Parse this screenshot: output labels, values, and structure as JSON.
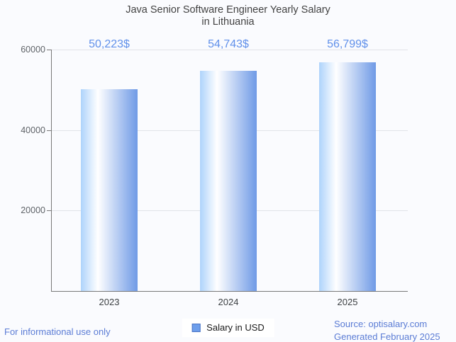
{
  "title": {
    "line1": "Java Senior Software Engineer Yearly Salary",
    "line2": "in Lithuania"
  },
  "chart_data": {
    "type": "bar",
    "title": "Java Senior Software Engineer Yearly Salary in Lithuania",
    "categories": [
      "2023",
      "2024",
      "2025"
    ],
    "values": [
      50223,
      54743,
      56799
    ],
    "value_labels": [
      "50,223$",
      "54,743$",
      "56,799$"
    ],
    "series": [
      {
        "name": "Salary in USD",
        "values": [
          50223,
          54743,
          56799
        ]
      }
    ],
    "xlabel": "",
    "ylabel": "",
    "ylim": [
      0,
      60000
    ],
    "yticks": [
      20000,
      40000,
      60000
    ],
    "ytick_labels": [
      "20000",
      "40000",
      "60000"
    ],
    "grid": true,
    "legend_position": "bottom-center",
    "bar_gradient": [
      "#aed3fb",
      "#ffffff",
      "#6f9ae6"
    ],
    "value_label_color": "#6090ea"
  },
  "legend": {
    "label": "Salary in USD",
    "swatch_fill": "#6d9eeb",
    "swatch_border": "#4a73c4"
  },
  "footer": {
    "left": "For informational use only",
    "source": "Source: optisalary.com",
    "generated": "Generated February 2025"
  },
  "colors": {
    "background": "#fafbfe",
    "title_text": "#424242",
    "axis_line": "#787878",
    "gridline": "#e1e3e8",
    "footer_text": "#5b7cd5"
  }
}
